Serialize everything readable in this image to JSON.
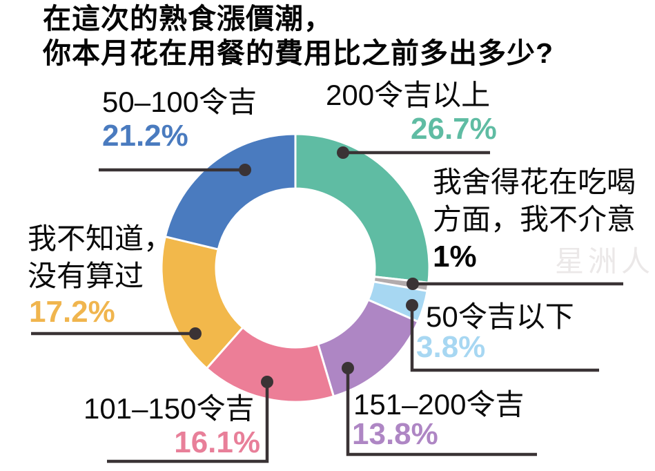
{
  "title": {
    "line1": "在這次的熟食漲價潮，",
    "line2": "你本月花在用餐的費用比之前多出多少?"
  },
  "watermark": "星洲人",
  "chart_data": {
    "type": "pie",
    "donut": true,
    "title": "在這次的熟食漲價潮，你本月花在用餐的費用比之前多出多少?",
    "unit": "%",
    "direction": "clockwise",
    "start_angle_deg": 0,
    "separator_color": "#ffffff",
    "leader_color": "#3a3335",
    "segments": [
      {
        "label": "200令吉以上",
        "value": 26.7,
        "display": "26.7%",
        "color": "#5fbca3"
      },
      {
        "label": "我舍得花在吃喝方面，我不介意",
        "value": 1.0,
        "display": "1%",
        "color": "#b2abac"
      },
      {
        "label": "50令吉以下",
        "value": 3.8,
        "display": "3.8%",
        "color": "#a7d7f2"
      },
      {
        "label": "151–200令吉",
        "value": 13.8,
        "display": "13.8%",
        "color": "#ae86c4"
      },
      {
        "label": "101–150令吉",
        "value": 16.1,
        "display": "16.1%",
        "color": "#ec7e97"
      },
      {
        "label": "我不知道，没有算过",
        "value": 17.2,
        "display": "17.2%",
        "color": "#f2b84b"
      },
      {
        "label": "50–100令吉",
        "value": 21.2,
        "display": "21.2%",
        "color": "#4a7bbf"
      }
    ]
  },
  "callouts": {
    "r50_100": {
      "label": "50–100令吉",
      "pct": "21.2%",
      "pct_color": "#4a7bbf"
    },
    "r200plus": {
      "label": "200令吉以上",
      "pct": "26.7%",
      "pct_color": "#5fbca3"
    },
    "no_mind": {
      "line1": "我舍得花在吃喝",
      "line2": "方面，我不介意",
      "pct": "1%",
      "pct_color": "#050505"
    },
    "below50": {
      "label": "50令吉以下",
      "pct": "3.8%",
      "pct_color": "#a7d7f2"
    },
    "r151_200": {
      "label": "151–200令吉",
      "pct": "13.8%",
      "pct_color": "#ae86c4"
    },
    "r101_150": {
      "label": "101–150令吉",
      "pct": "16.1%",
      "pct_color": "#e87f99"
    },
    "unknown": {
      "line1": "我不知道，",
      "line2": "没有算过",
      "pct": "17.2%",
      "pct_color": "#f0b54e"
    }
  }
}
